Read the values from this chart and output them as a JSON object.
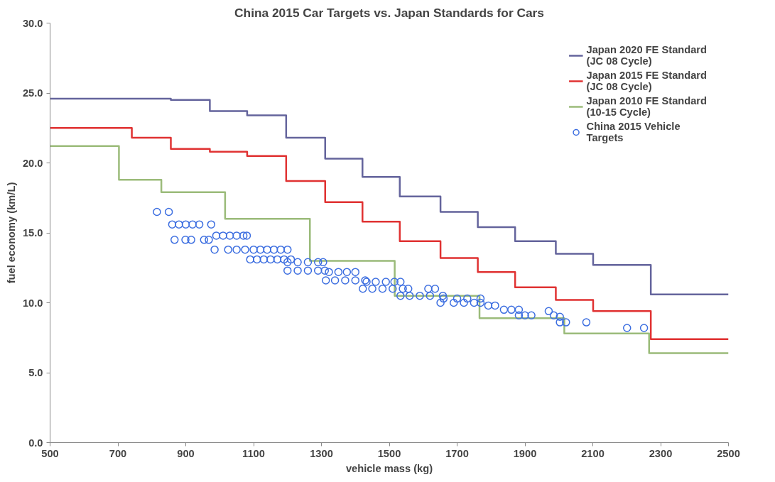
{
  "chart_data": {
    "type": "step",
    "title": "China 2015 Car Targets vs. Japan Standards for Cars",
    "xlabel": "vehicle mass (kg)",
    "ylabel": "fuel economy (km/L)",
    "xlim": [
      500,
      2500
    ],
    "xticks": [
      500,
      700,
      900,
      1100,
      1300,
      1500,
      1700,
      1900,
      2100,
      2300,
      2500
    ],
    "ylim": [
      0,
      30
    ],
    "yticks": [
      {
        "value": 0,
        "label": "0.0"
      },
      {
        "value": 5,
        "label": "5.0"
      },
      {
        "value": 10,
        "label": "10.0"
      },
      {
        "value": 15,
        "label": "15.0"
      },
      {
        "value": 20,
        "label": "20.0"
      },
      {
        "value": 25,
        "label": "25.0"
      },
      {
        "value": 30,
        "label": "30.0"
      }
    ],
    "grid": false,
    "legend": "top right",
    "line_style": "solid",
    "series": [
      {
        "name": "Japan 2020 FE Standard (JC 08 Cycle)",
        "color": "#64649c",
        "x": [
          500,
          856,
          971,
          1081,
          1196,
          1311,
          1421,
          1531,
          1651,
          1761,
          1871,
          1991,
          2101,
          2271,
          2500
        ],
        "values": [
          24.6,
          24.5,
          23.7,
          23.4,
          21.8,
          20.3,
          19.0,
          17.6,
          16.5,
          15.4,
          14.4,
          13.5,
          12.7,
          10.6,
          10.6
        ]
      },
      {
        "name": "Japan 2015 FE Standard (JC 08 Cycle)",
        "color": "#e03232",
        "x": [
          500,
          741,
          856,
          971,
          1081,
          1196,
          1311,
          1421,
          1531,
          1651,
          1761,
          1871,
          1991,
          2101,
          2271,
          2500
        ],
        "values": [
          22.5,
          21.8,
          21.0,
          20.8,
          20.5,
          18.7,
          17.2,
          15.8,
          14.4,
          13.2,
          12.2,
          11.1,
          10.2,
          9.4,
          7.4,
          7.4
        ]
      },
      {
        "name": "Japan 2010 FE Standard (10-15 Cycle)",
        "color": "#9bbb7a",
        "x": [
          500,
          703,
          828,
          1016,
          1266,
          1516,
          1766,
          2016,
          2266,
          2500
        ],
        "values": [
          21.2,
          18.8,
          17.9,
          16.0,
          13.0,
          10.5,
          8.9,
          7.8,
          6.4,
          6.4
        ]
      },
      {
        "name": "China 2015 Vehicle Targets",
        "type": "scatter",
        "marker": "circle",
        "color": "#3c6ee0",
        "x": [
          815,
          850,
          860,
          880,
          900,
          920,
          940,
          975,
          867,
          899,
          916,
          954,
          968,
          990,
          1010,
          1030,
          1050,
          1070,
          1080,
          985,
          1025,
          1050,
          1075,
          1100,
          1120,
          1140,
          1160,
          1180,
          1200,
          1090,
          1110,
          1130,
          1150,
          1170,
          1190,
          1210,
          1200,
          1230,
          1260,
          1290,
          1305,
          1200,
          1230,
          1260,
          1290,
          1310,
          1322,
          1350,
          1375,
          1400,
          1313,
          1340,
          1370,
          1400,
          1429,
          1433,
          1460,
          1490,
          1515,
          1533,
          1422,
          1450,
          1480,
          1510,
          1540,
          1556,
          1615,
          1635,
          1533,
          1560,
          1590,
          1620,
          1658,
          1660,
          1700,
          1730,
          1769,
          1651,
          1690,
          1720,
          1750,
          1769,
          1792,
          1812,
          1838,
          1860,
          1882,
          1882,
          1900,
          1919,
          1970,
          1985,
          2003,
          2003,
          2021,
          2081,
          2201,
          2251
        ],
        "values": [
          16.5,
          16.5,
          15.6,
          15.6,
          15.6,
          15.6,
          15.6,
          15.6,
          14.5,
          14.5,
          14.5,
          14.5,
          14.5,
          14.8,
          14.8,
          14.8,
          14.8,
          14.8,
          14.8,
          13.8,
          13.8,
          13.8,
          13.8,
          13.8,
          13.8,
          13.8,
          13.8,
          13.8,
          13.8,
          13.1,
          13.1,
          13.1,
          13.1,
          13.1,
          13.1,
          13.1,
          12.9,
          12.9,
          12.9,
          12.9,
          12.9,
          12.3,
          12.3,
          12.3,
          12.3,
          12.3,
          12.2,
          12.2,
          12.2,
          12.2,
          11.6,
          11.6,
          11.6,
          11.6,
          11.6,
          11.5,
          11.5,
          11.5,
          11.5,
          11.5,
          11.0,
          11.0,
          11.0,
          11.0,
          11.0,
          11.0,
          11.0,
          11.0,
          10.5,
          10.5,
          10.5,
          10.5,
          10.5,
          10.3,
          10.3,
          10.3,
          10.3,
          10.0,
          10.0,
          10.0,
          10.0,
          10.0,
          9.8,
          9.8,
          9.5,
          9.5,
          9.5,
          9.1,
          9.1,
          9.1,
          9.4,
          9.1,
          9.0,
          8.6,
          8.6,
          8.6,
          8.2,
          8.2
        ]
      }
    ]
  }
}
